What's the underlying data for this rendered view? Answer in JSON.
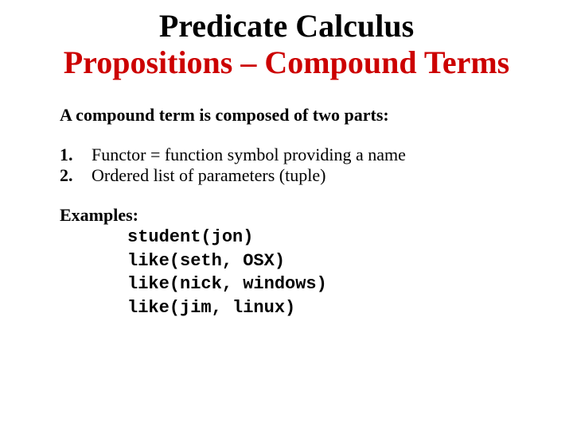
{
  "title": {
    "line1": "Predicate Calculus",
    "line2": "Propositions – Compound Terms",
    "line1_color": "#000000",
    "line2_color": "#cc0000",
    "fontsize": 40
  },
  "intro": "A compound term is composed of two parts:",
  "list": [
    {
      "num": "1.",
      "text": "Functor = function symbol providing a name"
    },
    {
      "num": "2.",
      "text": "Ordered list of parameters (tuple)"
    }
  ],
  "examples_label": "Examples:",
  "examples": [
    "student(jon)",
    "like(seth, OSX)",
    "like(nick, windows)",
    "like(jim, linux)"
  ],
  "body_fontsize": 22,
  "body_font": "Comic Sans MS",
  "example_font": "Courier New",
  "background_color": "#ffffff",
  "text_color": "#000000"
}
